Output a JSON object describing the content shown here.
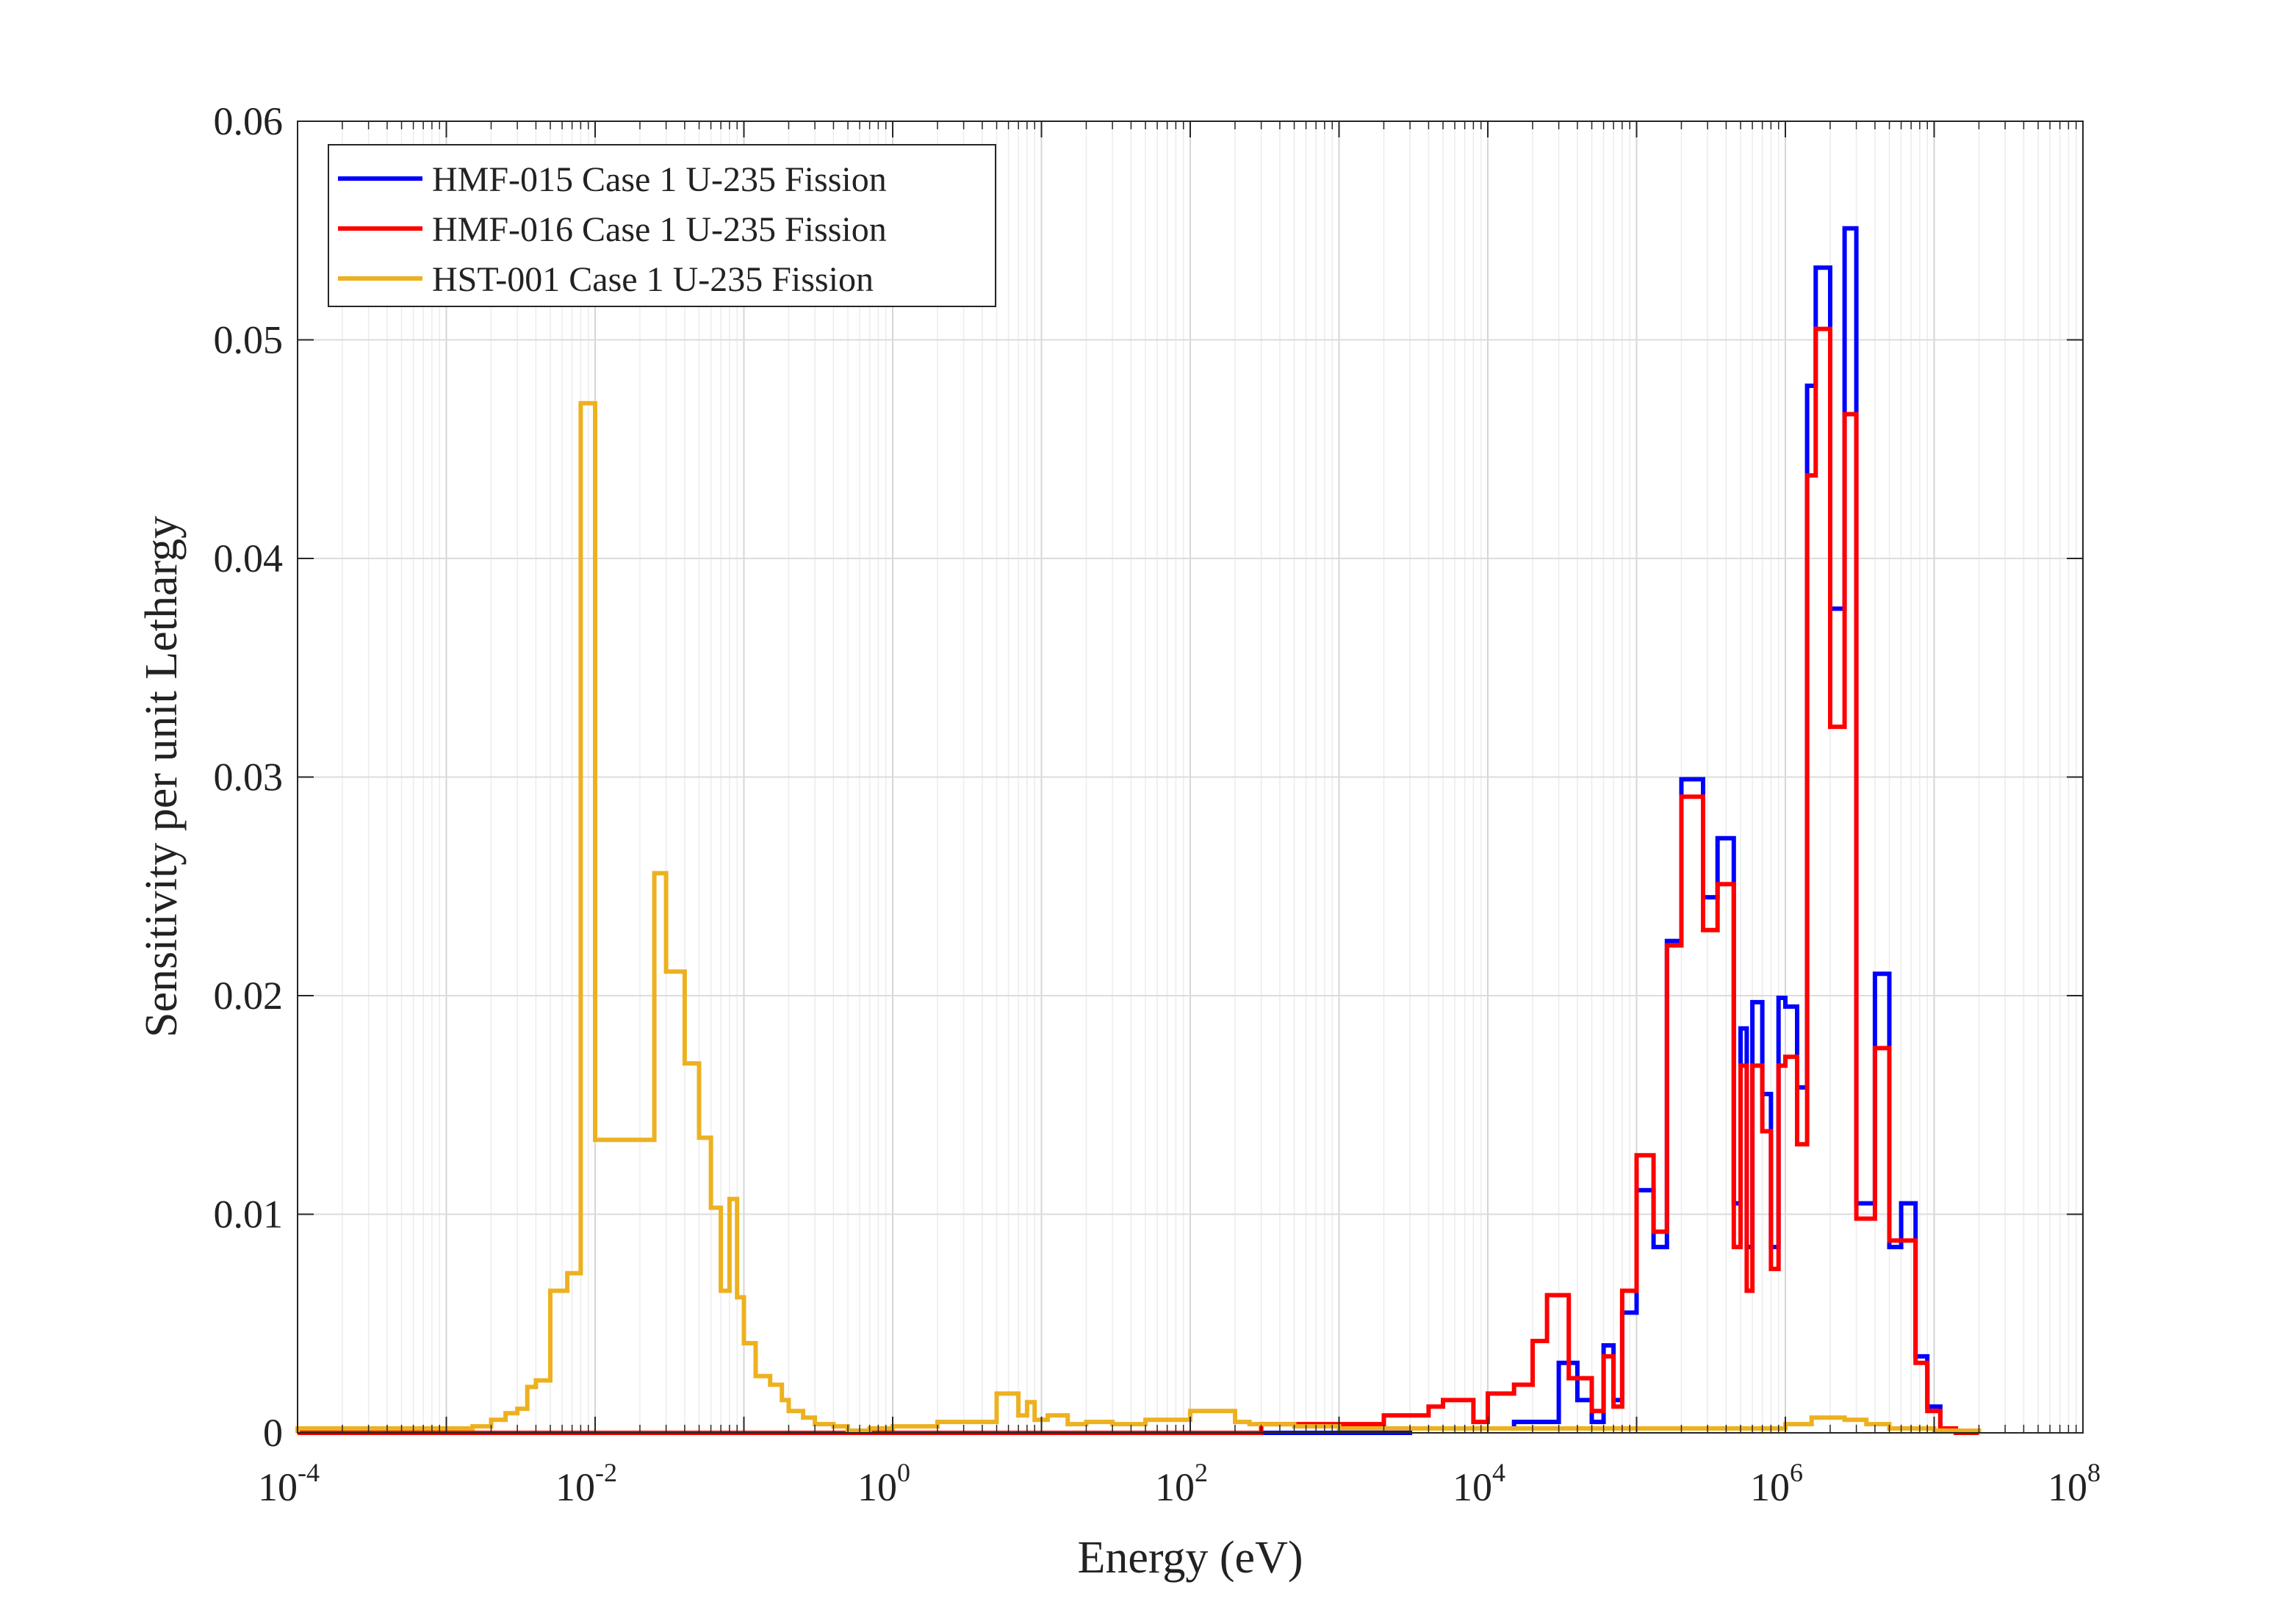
{
  "chart_data": {
    "type": "line",
    "step": true,
    "xscale": "log",
    "xlabel": "Energy (eV)",
    "ylabel": "Sensitivity per unit Lethargy",
    "xlim": [
      0.0001,
      100000000
    ],
    "ylim": [
      0,
      0.06
    ],
    "x_ticks": [
      {
        "base": "10",
        "exp": "-4"
      },
      {
        "base": "10",
        "exp": "-2"
      },
      {
        "base": "10",
        "exp": "0"
      },
      {
        "base": "10",
        "exp": "2"
      },
      {
        "base": "10",
        "exp": "4"
      },
      {
        "base": "10",
        "exp": "6"
      },
      {
        "base": "10",
        "exp": "8"
      }
    ],
    "y_ticks": [
      "0",
      "0.01",
      "0.02",
      "0.03",
      "0.04",
      "0.05",
      "0.06"
    ],
    "grid": true,
    "legend_position": "top-left",
    "series": [
      {
        "name": "HMF-015 Case 1 U-235 Fission",
        "color": "#0000ff",
        "edges": [
          0.0001,
          3000,
          15000,
          30000,
          40000,
          50000,
          60000,
          70000,
          80000,
          100000,
          130000,
          160000,
          200000,
          280000,
          350000,
          450000,
          500000,
          550000,
          600000,
          700000,
          800000,
          900000,
          1000000,
          1200000,
          1400000,
          1600000,
          2000000,
          2500000,
          3000000,
          4000000,
          5000000,
          6000000,
          7500000,
          9000000,
          11000000,
          14000000,
          20000000
        ],
        "values": [
          0,
          0.0002,
          0.0005,
          0.0032,
          0.0015,
          0.0005,
          0.004,
          0.0015,
          0.0055,
          0.0111,
          0.0085,
          0.0225,
          0.0299,
          0.0245,
          0.0272,
          0.0105,
          0.0185,
          0.0085,
          0.0197,
          0.0155,
          0.0085,
          0.0199,
          0.0195,
          0.0158,
          0.0479,
          0.0533,
          0.0377,
          0.0551,
          0.0105,
          0.021,
          0.0085,
          0.0105,
          0.0035,
          0.0012,
          0.0002,
          0
        ]
      },
      {
        "name": "HMF-016 Case 1 U-235 Fission",
        "color": "#ff0000",
        "edges": [
          0.0001,
          300,
          2000,
          4000,
          5000,
          8000,
          10000,
          15000,
          20000,
          25000,
          35000,
          50000,
          60000,
          70000,
          80000,
          100000,
          130000,
          160000,
          200000,
          280000,
          350000,
          450000,
          500000,
          550000,
          600000,
          700000,
          800000,
          900000,
          1000000,
          1200000,
          1400000,
          1600000,
          2000000,
          2500000,
          3000000,
          4000000,
          5000000,
          6000000,
          7500000,
          9000000,
          11000000,
          14000000,
          20000000
        ],
        "values": [
          0,
          0.0004,
          0.0008,
          0.0012,
          0.0015,
          0.0005,
          0.0018,
          0.0022,
          0.0042,
          0.0063,
          0.0025,
          0.001,
          0.0035,
          0.0012,
          0.0065,
          0.0127,
          0.0092,
          0.0223,
          0.0291,
          0.023,
          0.0251,
          0.0085,
          0.0168,
          0.0065,
          0.0168,
          0.0138,
          0.0075,
          0.0168,
          0.0172,
          0.0132,
          0.0438,
          0.0505,
          0.0323,
          0.0466,
          0.0098,
          0.0176,
          0.0088,
          0.0088,
          0.0032,
          0.001,
          0.0002,
          0
        ]
      },
      {
        "name": "HST-001 Case 1 U-235 Fission",
        "color": "#edb120",
        "edges": [
          0.0001,
          0.0015,
          0.002,
          0.0025,
          0.003,
          0.0035,
          0.004,
          0.005,
          0.0065,
          0.008,
          0.01,
          0.025,
          0.03,
          0.04,
          0.05,
          0.06,
          0.07,
          0.08,
          0.09,
          0.1,
          0.12,
          0.15,
          0.18,
          0.2,
          0.25,
          0.3,
          0.4,
          0.5,
          0.7,
          1,
          2,
          5,
          7,
          8,
          9,
          11,
          15,
          20,
          30,
          50,
          100,
          200,
          250,
          500,
          1000,
          2000,
          5000,
          10000,
          50000,
          100000,
          1000000,
          1500000,
          2500000,
          3500000,
          5000000,
          10000000,
          20000000
        ],
        "values": [
          0.0002,
          0.0003,
          0.0006,
          0.0009,
          0.0011,
          0.0021,
          0.0024,
          0.0065,
          0.0073,
          0.0471,
          0.0134,
          0.0256,
          0.0211,
          0.0169,
          0.0135,
          0.0103,
          0.0065,
          0.0107,
          0.0062,
          0.0041,
          0.0026,
          0.0022,
          0.0015,
          0.001,
          0.0007,
          0.0004,
          0.0003,
          0.0001,
          0.0002,
          0.0003,
          0.0005,
          0.0018,
          0.0008,
          0.0014,
          0.0006,
          0.0008,
          0.0004,
          0.0005,
          0.0004,
          0.0006,
          0.001,
          0.0005,
          0.0004,
          0.0003,
          0.0002,
          0.0002,
          0.0002,
          0.0002,
          0.0002,
          0.0002,
          0.0004,
          0.0007,
          0.0006,
          0.0004,
          0.0002,
          0.0001
        ]
      }
    ]
  }
}
